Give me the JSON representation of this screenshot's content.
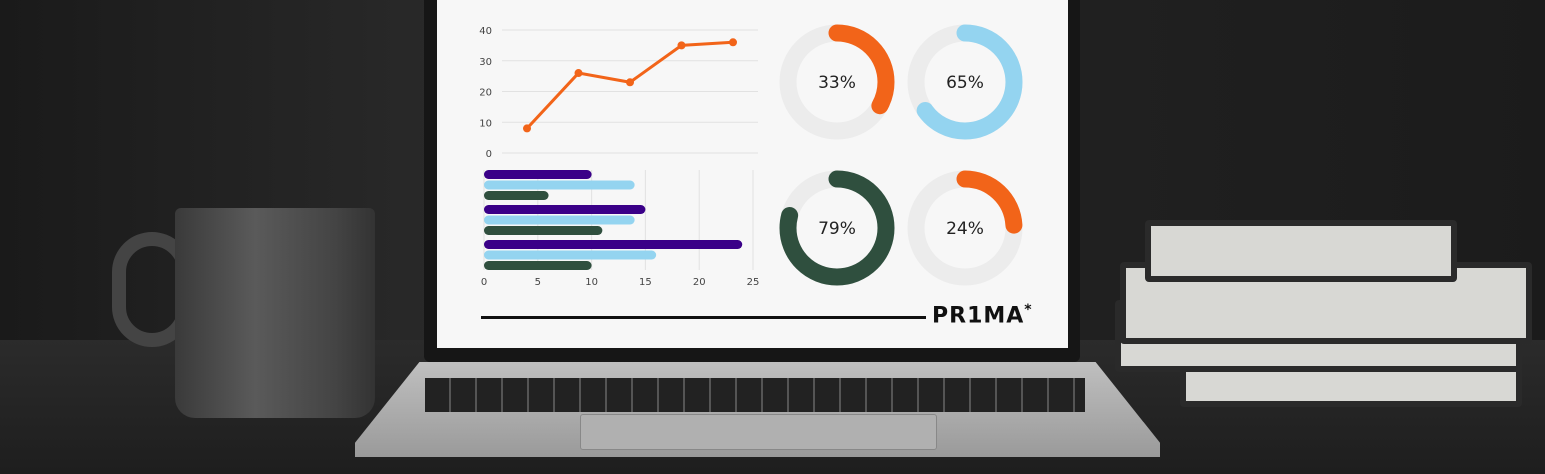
{
  "chart_data": [
    {
      "type": "line",
      "x": [
        1,
        2,
        3,
        4,
        5
      ],
      "values": [
        8,
        26,
        23,
        35,
        36
      ],
      "ylim": [
        0,
        40
      ],
      "yticks": [
        "0",
        "10",
        "20",
        "30",
        "40"
      ],
      "grid": true,
      "color": "#f26419"
    },
    {
      "type": "bar",
      "orientation": "horizontal",
      "xlim": [
        0,
        25
      ],
      "xticks": [
        "0",
        "5",
        "10",
        "15",
        "20",
        "25"
      ],
      "grid": true,
      "series": [
        {
          "color": "#3a0088",
          "values": [
            10,
            15,
            24
          ]
        },
        {
          "color": "#94d4f0",
          "values": [
            14,
            14,
            16
          ]
        },
        {
          "color": "#2f4f3e",
          "values": [
            6,
            11,
            10
          ]
        }
      ]
    },
    {
      "type": "pie",
      "variant": "donut",
      "items": [
        {
          "label": "33%",
          "value": 33,
          "color": "#f26419"
        },
        {
          "label": "65%",
          "value": 65,
          "color": "#94d4f0"
        },
        {
          "label": "79%",
          "value": 79,
          "color": "#2f4f3e"
        },
        {
          "label": "24%",
          "value": 24,
          "color": "#f26419"
        }
      ]
    }
  ],
  "brand": {
    "logo": "PR1MA",
    "mark": "*"
  }
}
